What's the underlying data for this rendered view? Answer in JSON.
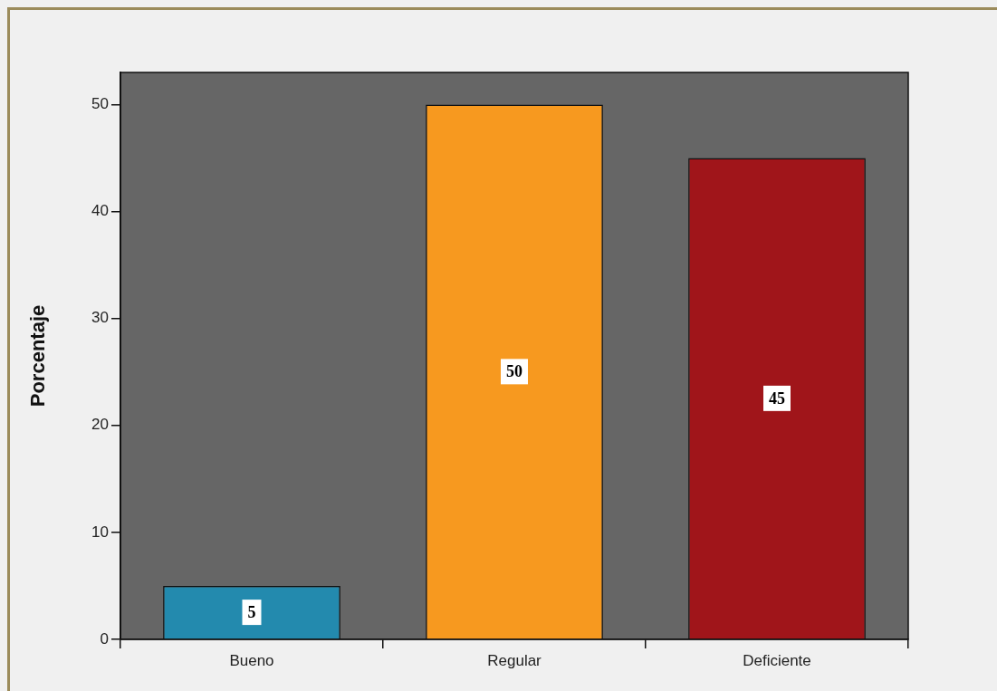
{
  "chart_data": {
    "type": "bar",
    "ylabel": "Porcentaje",
    "categories": [
      "Bueno",
      "Regular",
      "Deficiente"
    ],
    "values": [
      5,
      50,
      45
    ],
    "colors": [
      "#238aae",
      "#f7991f",
      "#a0151a"
    ],
    "ylim": [
      0,
      53
    ],
    "yticks": [
      0,
      10,
      20,
      30,
      40,
      50
    ],
    "data_labels": true
  }
}
